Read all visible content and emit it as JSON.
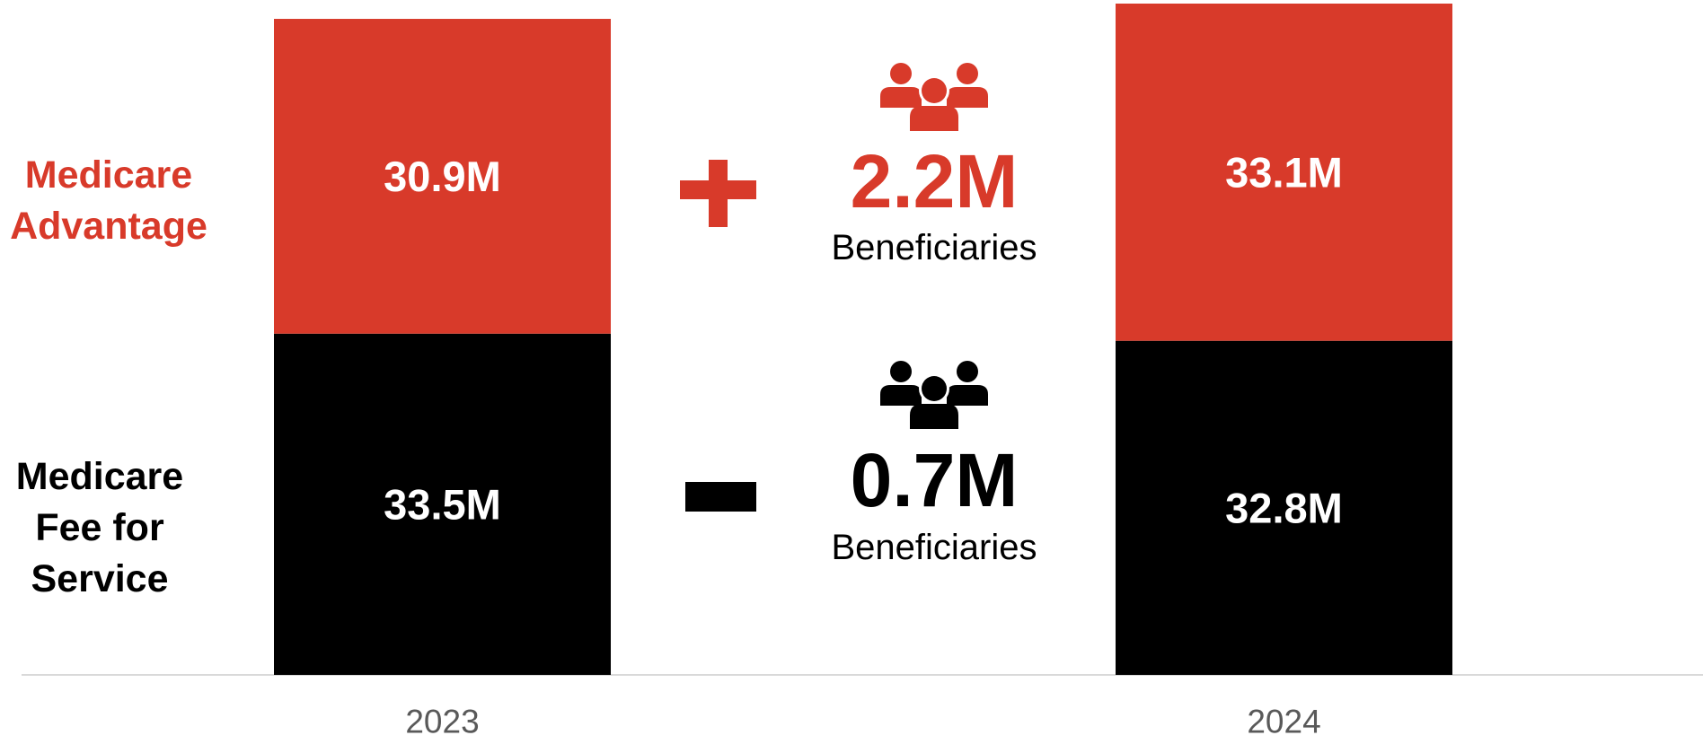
{
  "chart_data": {
    "type": "bar",
    "stacked": true,
    "categories": [
      "2023",
      "2024"
    ],
    "series": [
      {
        "name": "Medicare Advantage",
        "color": "#d83a2a",
        "values": [
          30.9,
          33.1
        ],
        "value_labels": [
          "30.9M",
          "33.1M"
        ]
      },
      {
        "name": "Medicare Fee for Service",
        "color": "#000000",
        "values": [
          33.5,
          32.8
        ],
        "value_labels": [
          "33.5M",
          "32.8M"
        ]
      }
    ],
    "annotations": [
      {
        "change": "2.2M",
        "unit": "Beneficiaries"
      },
      {
        "change": "0.7M",
        "unit": "Beneficiaries"
      }
    ]
  }
}
